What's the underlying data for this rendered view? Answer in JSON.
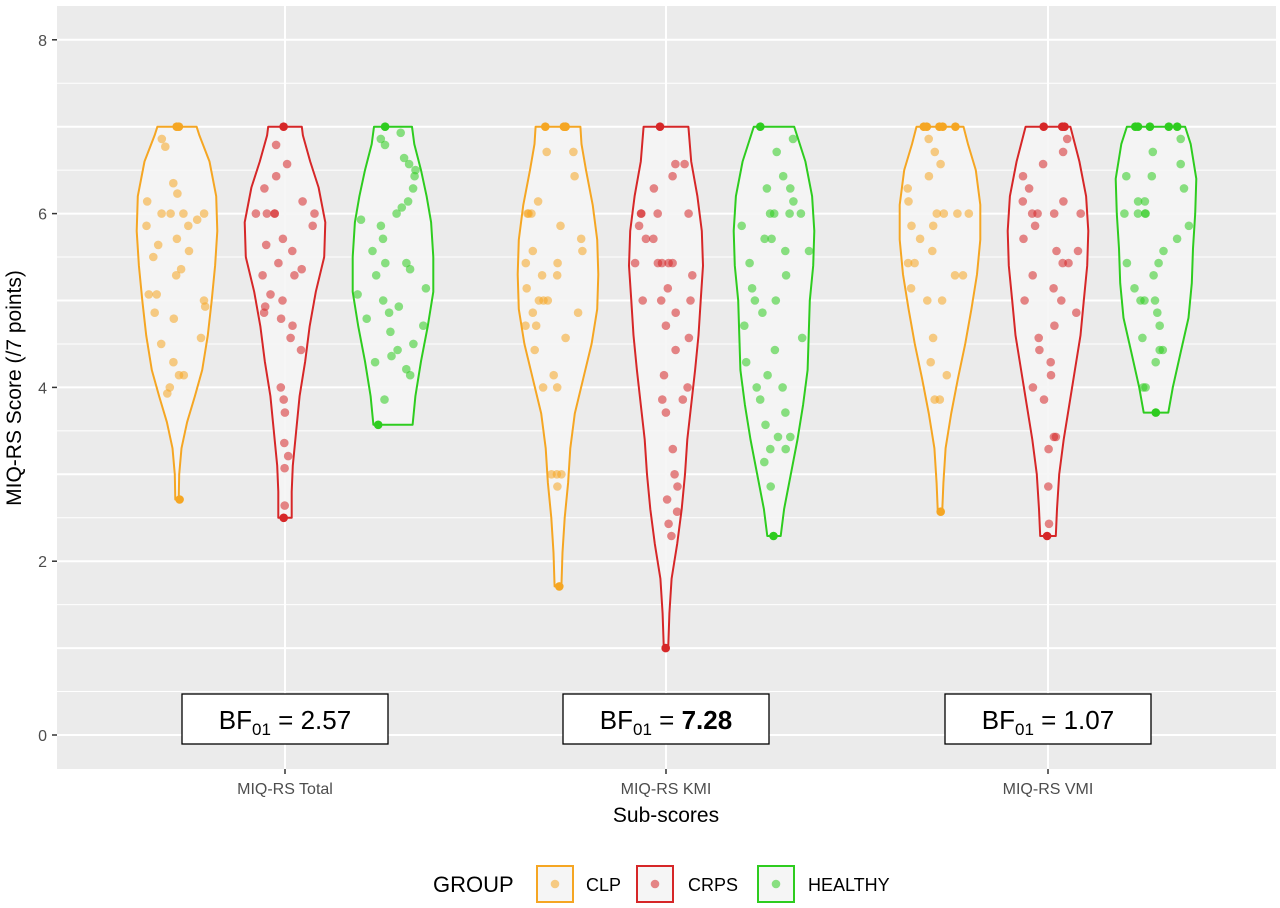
{
  "chart_data": {
    "type": "violin",
    "xlabel": "Sub-scores",
    "ylabel": "MIQ-RS Score (/7 points)",
    "ylim": [
      -0.35,
      8.35
    ],
    "yticks": [
      "0",
      "2",
      "4",
      "6",
      "8"
    ],
    "categories": [
      "MIQ-RS Total",
      "MIQ-RS KMI",
      "MIQ-RS VMI"
    ],
    "legend": {
      "title": "GROUP",
      "position": "bottom",
      "items": [
        {
          "label": "CLP",
          "color": "#f5a623"
        },
        {
          "label": "CRPS",
          "color": "#d62728"
        },
        {
          "label": "HEALTHY",
          "color": "#2ecc1f"
        }
      ]
    },
    "grid": true,
    "background": "#ebebeb",
    "violins": [
      {
        "category": "MIQ-RS Total",
        "group": "CLP",
        "min": 2.71,
        "max": 7.0,
        "profile": [
          [
            2.71,
            0.03
          ],
          [
            3.0,
            0.04
          ],
          [
            3.3,
            0.08
          ],
          [
            3.6,
            0.18
          ],
          [
            3.9,
            0.32
          ],
          [
            4.2,
            0.45
          ],
          [
            4.6,
            0.55
          ],
          [
            5.0,
            0.62
          ],
          [
            5.4,
            0.68
          ],
          [
            5.8,
            0.72
          ],
          [
            6.2,
            0.7
          ],
          [
            6.6,
            0.58
          ],
          [
            6.9,
            0.4
          ],
          [
            7.0,
            0.35
          ]
        ]
      },
      {
        "category": "MIQ-RS Total",
        "group": "CRPS",
        "min": 2.5,
        "max": 7.0,
        "profile": [
          [
            2.5,
            0.12
          ],
          [
            2.8,
            0.12
          ],
          [
            3.1,
            0.14
          ],
          [
            3.5,
            0.2
          ],
          [
            3.9,
            0.26
          ],
          [
            4.3,
            0.36
          ],
          [
            4.7,
            0.44
          ],
          [
            5.1,
            0.55
          ],
          [
            5.5,
            0.7
          ],
          [
            5.9,
            0.72
          ],
          [
            6.3,
            0.6
          ],
          [
            6.6,
            0.45
          ],
          [
            6.9,
            0.32
          ],
          [
            7.0,
            0.3
          ]
        ]
      },
      {
        "category": "MIQ-RS Total",
        "group": "HEALTHY",
        "min": 3.57,
        "max": 7.0,
        "profile": [
          [
            3.57,
            0.35
          ],
          [
            3.9,
            0.4
          ],
          [
            4.3,
            0.5
          ],
          [
            4.7,
            0.62
          ],
          [
            5.1,
            0.72
          ],
          [
            5.5,
            0.72
          ],
          [
            5.9,
            0.68
          ],
          [
            6.2,
            0.6
          ],
          [
            6.5,
            0.5
          ],
          [
            6.8,
            0.38
          ],
          [
            7.0,
            0.34
          ]
        ]
      },
      {
        "category": "MIQ-RS KMI",
        "group": "CLP",
        "min": 1.71,
        "max": 7.0,
        "profile": [
          [
            1.71,
            0.06
          ],
          [
            2.1,
            0.08
          ],
          [
            2.5,
            0.12
          ],
          [
            2.9,
            0.18
          ],
          [
            3.3,
            0.22
          ],
          [
            3.7,
            0.3
          ],
          [
            4.1,
            0.45
          ],
          [
            4.5,
            0.6
          ],
          [
            4.9,
            0.7
          ],
          [
            5.3,
            0.72
          ],
          [
            5.7,
            0.7
          ],
          [
            6.1,
            0.62
          ],
          [
            6.5,
            0.5
          ],
          [
            6.8,
            0.42
          ],
          [
            7.0,
            0.4
          ]
        ]
      },
      {
        "category": "MIQ-RS KMI",
        "group": "CRPS",
        "min": 1.0,
        "max": 7.0,
        "profile": [
          [
            1.0,
            0.04
          ],
          [
            1.4,
            0.06
          ],
          [
            1.8,
            0.1
          ],
          [
            2.2,
            0.2
          ],
          [
            2.6,
            0.28
          ],
          [
            3.0,
            0.34
          ],
          [
            3.4,
            0.38
          ],
          [
            3.8,
            0.45
          ],
          [
            4.2,
            0.52
          ],
          [
            4.6,
            0.58
          ],
          [
            5.0,
            0.62
          ],
          [
            5.4,
            0.66
          ],
          [
            5.8,
            0.64
          ],
          [
            6.2,
            0.56
          ],
          [
            6.6,
            0.45
          ],
          [
            7.0,
            0.4
          ]
        ]
      },
      {
        "category": "MIQ-RS KMI",
        "group": "HEALTHY",
        "min": 2.29,
        "max": 7.0,
        "profile": [
          [
            2.29,
            0.12
          ],
          [
            2.6,
            0.18
          ],
          [
            3.0,
            0.3
          ],
          [
            3.4,
            0.42
          ],
          [
            3.8,
            0.52
          ],
          [
            4.2,
            0.6
          ],
          [
            4.6,
            0.62
          ],
          [
            5.0,
            0.64
          ],
          [
            5.4,
            0.7
          ],
          [
            5.8,
            0.72
          ],
          [
            6.2,
            0.68
          ],
          [
            6.6,
            0.56
          ],
          [
            7.0,
            0.36
          ]
        ]
      },
      {
        "category": "MIQ-RS VMI",
        "group": "CLP",
        "min": 2.57,
        "max": 7.0,
        "profile": [
          [
            2.57,
            0.04
          ],
          [
            2.9,
            0.06
          ],
          [
            3.3,
            0.1
          ],
          [
            3.7,
            0.2
          ],
          [
            4.1,
            0.32
          ],
          [
            4.5,
            0.45
          ],
          [
            4.9,
            0.56
          ],
          [
            5.3,
            0.66
          ],
          [
            5.7,
            0.72
          ],
          [
            6.1,
            0.72
          ],
          [
            6.5,
            0.64
          ],
          [
            6.8,
            0.5
          ],
          [
            7.0,
            0.42
          ]
        ]
      },
      {
        "category": "MIQ-RS VMI",
        "group": "CRPS",
        "min": 2.29,
        "max": 7.0,
        "profile": [
          [
            2.29,
            0.14
          ],
          [
            2.6,
            0.16
          ],
          [
            3.0,
            0.2
          ],
          [
            3.4,
            0.28
          ],
          [
            3.8,
            0.38
          ],
          [
            4.2,
            0.48
          ],
          [
            4.6,
            0.58
          ],
          [
            5.0,
            0.64
          ],
          [
            5.4,
            0.7
          ],
          [
            5.8,
            0.72
          ],
          [
            6.2,
            0.68
          ],
          [
            6.6,
            0.56
          ],
          [
            7.0,
            0.4
          ]
        ]
      },
      {
        "category": "MIQ-RS VMI",
        "group": "HEALTHY",
        "min": 3.71,
        "max": 7.0,
        "profile": [
          [
            3.71,
            0.22
          ],
          [
            4.0,
            0.3
          ],
          [
            4.4,
            0.44
          ],
          [
            4.8,
            0.58
          ],
          [
            5.2,
            0.64
          ],
          [
            5.6,
            0.66
          ],
          [
            6.0,
            0.7
          ],
          [
            6.4,
            0.72
          ],
          [
            6.8,
            0.62
          ],
          [
            7.0,
            0.52
          ]
        ]
      }
    ],
    "points": {
      "MIQ-RS Total|CLP": [
        7.0,
        7.0,
        6.86,
        6.77,
        6.35,
        6.23,
        6.14,
        6.0,
        6.0,
        6.0,
        6.0,
        5.93,
        5.86,
        5.86,
        5.71,
        5.64,
        5.57,
        5.5,
        5.36,
        5.29,
        5.07,
        5.07,
        5.0,
        4.93,
        4.86,
        4.79,
        4.57,
        4.5,
        4.29,
        4.14,
        4.14,
        4.0,
        3.93,
        2.71
      ],
      "MIQ-RS Total|CRPS": [
        7.0,
        6.79,
        6.57,
        6.43,
        6.29,
        6.14,
        6.0,
        6.0,
        6.0,
        6.0,
        6.0,
        5.86,
        5.71,
        5.64,
        5.57,
        5.43,
        5.36,
        5.29,
        5.29,
        5.07,
        5.0,
        4.93,
        4.86,
        4.79,
        4.71,
        4.57,
        4.43,
        4.0,
        3.86,
        3.71,
        3.36,
        3.21,
        3.07,
        2.64,
        2.5
      ],
      "MIQ-RS Total|HEALTHY": [
        7.0,
        6.93,
        6.86,
        6.79,
        6.64,
        6.57,
        6.5,
        6.43,
        6.29,
        6.14,
        6.07,
        6.0,
        5.93,
        5.86,
        5.71,
        5.57,
        5.43,
        5.43,
        5.36,
        5.29,
        5.14,
        5.07,
        5.0,
        4.93,
        4.86,
        4.79,
        4.71,
        4.64,
        4.5,
        4.43,
        4.36,
        4.29,
        4.21,
        4.14,
        3.86,
        3.57
      ],
      "MIQ-RS KMI|CLP": [
        7.0,
        7.0,
        7.0,
        7.0,
        6.71,
        6.71,
        6.43,
        6.14,
        6.0,
        6.0,
        6.0,
        5.86,
        5.71,
        5.57,
        5.57,
        5.43,
        5.43,
        5.29,
        5.29,
        5.14,
        5.0,
        5.0,
        5.0,
        4.86,
        4.86,
        4.71,
        4.71,
        4.57,
        4.43,
        4.14,
        4.0,
        4.0,
        3.0,
        3.0,
        3.0,
        2.86,
        1.71
      ],
      "MIQ-RS KMI|CRPS": [
        7.0,
        6.57,
        6.57,
        6.43,
        6.29,
        6.0,
        6.0,
        6.0,
        6.0,
        5.86,
        5.71,
        5.71,
        5.43,
        5.43,
        5.43,
        5.43,
        5.43,
        5.29,
        5.14,
        5.0,
        5.0,
        5.0,
        4.86,
        4.71,
        4.57,
        4.43,
        4.14,
        4.0,
        3.86,
        3.86,
        3.71,
        3.29,
        3.0,
        2.86,
        2.71,
        2.57,
        2.43,
        2.29,
        1.0
      ],
      "MIQ-RS KMI|HEALTHY": [
        7.0,
        6.86,
        6.71,
        6.43,
        6.29,
        6.29,
        6.14,
        6.0,
        6.0,
        6.0,
        6.0,
        5.86,
        5.71,
        5.71,
        5.57,
        5.57,
        5.43,
        5.29,
        5.14,
        5.0,
        5.0,
        4.86,
        4.71,
        4.57,
        4.43,
        4.29,
        4.14,
        4.0,
        4.0,
        3.86,
        3.71,
        3.57,
        3.43,
        3.43,
        3.29,
        3.29,
        3.14,
        2.86,
        2.29
      ],
      "MIQ-RS VMI|CLP": [
        7.0,
        7.0,
        7.0,
        7.0,
        7.0,
        6.86,
        6.71,
        6.57,
        6.43,
        6.29,
        6.14,
        6.0,
        6.0,
        6.0,
        6.0,
        5.86,
        5.86,
        5.71,
        5.57,
        5.43,
        5.43,
        5.29,
        5.29,
        5.14,
        5.0,
        5.0,
        4.57,
        4.29,
        4.14,
        3.86,
        3.86,
        2.57
      ],
      "MIQ-RS VMI|CRPS": [
        7.0,
        7.0,
        7.0,
        6.86,
        6.71,
        6.57,
        6.43,
        6.29,
        6.14,
        6.14,
        6.0,
        6.0,
        6.0,
        6.0,
        5.86,
        5.71,
        5.57,
        5.57,
        5.43,
        5.43,
        5.29,
        5.14,
        5.0,
        5.0,
        4.86,
        4.71,
        4.57,
        4.43,
        4.29,
        4.14,
        4.0,
        3.86,
        3.43,
        3.43,
        3.29,
        2.86,
        2.43,
        2.29
      ],
      "MIQ-RS VMI|HEALTHY": [
        7.0,
        7.0,
        7.0,
        7.0,
        7.0,
        6.86,
        6.71,
        6.57,
        6.43,
        6.43,
        6.29,
        6.14,
        6.14,
        6.0,
        6.0,
        6.0,
        6.0,
        5.86,
        5.71,
        5.57,
        5.43,
        5.43,
        5.29,
        5.14,
        5.0,
        5.0,
        5.0,
        4.86,
        4.71,
        4.57,
        4.43,
        4.43,
        4.29,
        4.0,
        4.0,
        3.71
      ]
    },
    "annotations": [
      {
        "category": "MIQ-RS Total",
        "prefix": "BF",
        "subscript": "01",
        "text": " = ",
        "value": "2.57",
        "bold": false
      },
      {
        "category": "MIQ-RS KMI",
        "prefix": "BF",
        "subscript": "01",
        "text": " = ",
        "value": "7.28",
        "bold": true
      },
      {
        "category": "MIQ-RS VMI",
        "prefix": "BF",
        "subscript": "01",
        "text": " = ",
        "value": "1.07",
        "bold": false
      }
    ]
  }
}
